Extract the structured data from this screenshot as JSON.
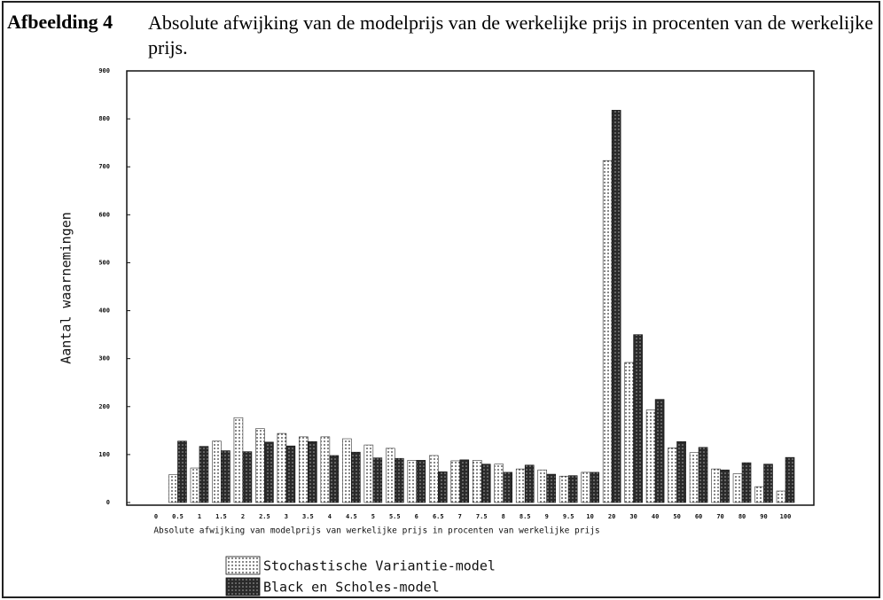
{
  "figure_label": "Afbeelding 4",
  "chart_data": {
    "type": "bar",
    "title": "Absolute afwijking van de modelprijs van de werkelijke prijs in procenten van de werkelijke prijs.",
    "xlabel": "Absolute afwijking van modelprijs van werkelijke prijs in procenten van werkelijke prijs",
    "ylabel": "Aantal waarnemingen",
    "categories": [
      "0",
      "0.5",
      "1",
      "1.5",
      "2",
      "2.5",
      "3",
      "3.5",
      "4",
      "4.5",
      "5",
      "5.5",
      "6",
      "6.5",
      "7",
      "7.5",
      "8",
      "8.5",
      "9",
      "9.5",
      "10",
      "20",
      "30",
      "40",
      "50",
      "60",
      "70",
      "80",
      "90",
      "100"
    ],
    "series": [
      {
        "name": "Stochastische Variantie-model",
        "color": "#ffffff",
        "values": [
          0,
          58,
          72,
          128,
          177,
          154,
          144,
          137,
          137,
          133,
          120,
          113,
          88,
          98,
          87,
          88,
          80,
          70,
          68,
          55,
          63,
          713,
          292,
          193,
          114,
          104,
          70,
          60,
          33,
          24
        ]
      },
      {
        "name": "Black en Scholes-model",
        "color": "#2a2a2a",
        "values": [
          0,
          128,
          117,
          108,
          106,
          126,
          118,
          127,
          98,
          105,
          93,
          92,
          88,
          64,
          89,
          80,
          63,
          78,
          59,
          56,
          63,
          818,
          350,
          215,
          127,
          115,
          68,
          83,
          80,
          94
        ]
      }
    ],
    "ylim": [
      0,
      900
    ],
    "yticks": [
      0,
      100,
      200,
      300,
      400,
      500,
      600,
      700,
      800,
      900
    ]
  }
}
